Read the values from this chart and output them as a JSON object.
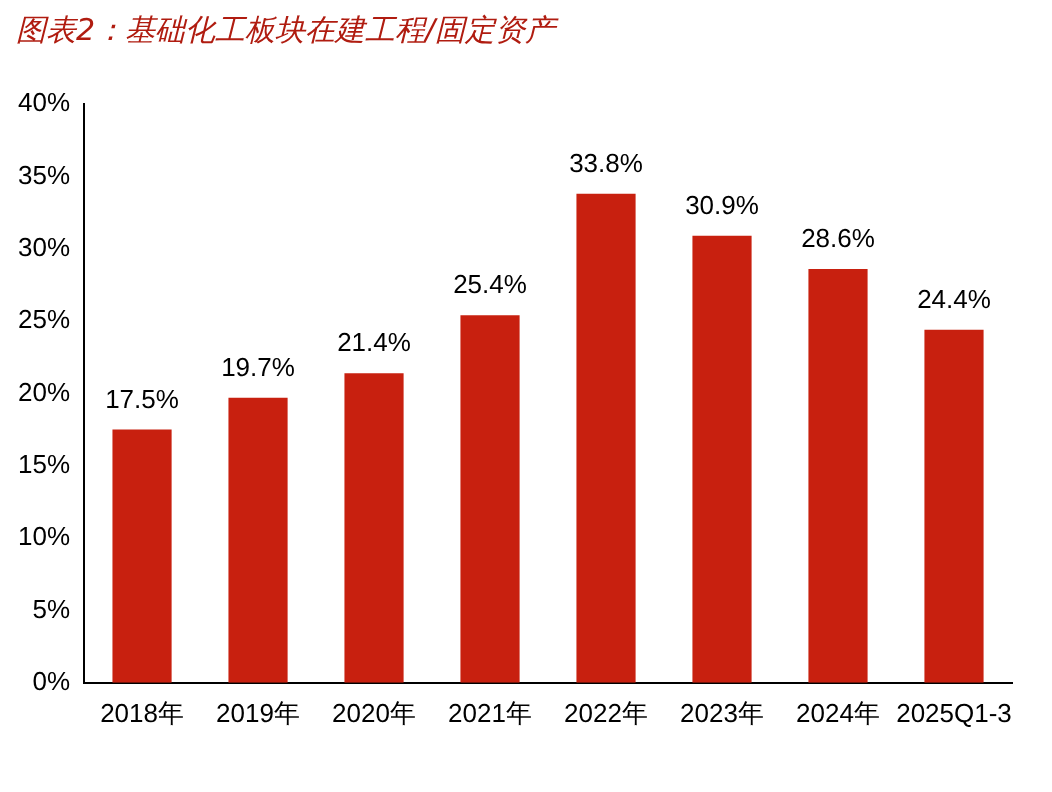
{
  "chart_data": {
    "type": "bar",
    "title": "图表2：基础化工板块在建工程/固定资产",
    "categories": [
      "2018年",
      "2019年",
      "2020年",
      "2021年",
      "2022年",
      "2023年",
      "2024年",
      "2025Q1-3"
    ],
    "values": [
      17.5,
      19.7,
      21.4,
      25.4,
      33.8,
      30.9,
      28.6,
      24.4
    ],
    "value_labels": [
      "17.5%",
      "19.7%",
      "21.4%",
      "25.4%",
      "33.8%",
      "30.9%",
      "28.6%",
      "24.4%"
    ],
    "color": "#c8200f",
    "ylim": [
      0,
      40
    ],
    "yticks": [
      {
        "value": 0,
        "label": "0%"
      },
      {
        "value": 5,
        "label": "5%"
      },
      {
        "value": 10,
        "label": "10%"
      },
      {
        "value": 15,
        "label": "15%"
      },
      {
        "value": 20,
        "label": "20%"
      },
      {
        "value": 25,
        "label": "25%"
      },
      {
        "value": 30,
        "label": "30%"
      },
      {
        "value": 35,
        "label": "35%"
      },
      {
        "value": 40,
        "label": "40%"
      }
    ],
    "grid": false,
    "legend": false
  }
}
